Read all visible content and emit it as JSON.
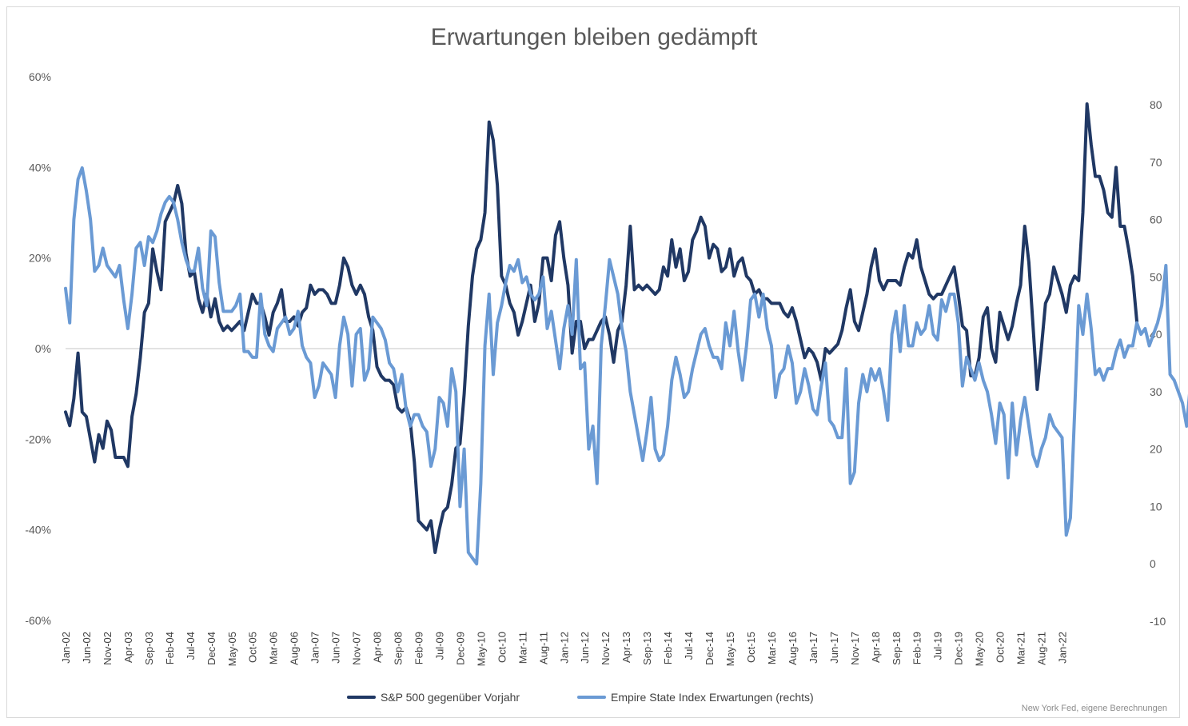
{
  "chart_data": {
    "type": "line",
    "title": "Erwartungen bleiben gedämpft",
    "source": "New York Fed, eigene Berechnungen",
    "x_labels": [
      "Jan-02",
      "Jun-02",
      "Nov-02",
      "Apr-03",
      "Sep-03",
      "Feb-04",
      "Jul-04",
      "Dec-04",
      "May-05",
      "Oct-05",
      "Mar-06",
      "Aug-06",
      "Jan-07",
      "Jun-07",
      "Nov-07",
      "Apr-08",
      "Sep-08",
      "Feb-09",
      "Jul-09",
      "Dec-09",
      "May-10",
      "Oct-10",
      "Mar-11",
      "Aug-11",
      "Jan-12",
      "Jun-12",
      "Nov-12",
      "Apr-13",
      "Sep-13",
      "Feb-14",
      "Jul-14",
      "Dec-14",
      "May-15",
      "Oct-15",
      "Mar-16",
      "Aug-16",
      "Jan-17",
      "Jun-17",
      "Nov-17",
      "Apr-18",
      "Sep-18",
      "Feb-19",
      "Jul-19",
      "Dec-19",
      "May-20",
      "Oct-20",
      "Mar-21",
      "Aug-21",
      "Jan-22"
    ],
    "y_left": {
      "ticks": [
        "60%",
        "40%",
        "20%",
        "0%",
        "-20%",
        "-40%",
        "-60%"
      ],
      "min": -0.6,
      "max": 0.6
    },
    "y_right": {
      "ticks": [
        "80",
        "70",
        "60",
        "50",
        "40",
        "30",
        "20",
        "10",
        "0",
        "-10"
      ],
      "min": -10,
      "max": 80
    },
    "grid": "zero-line only",
    "legend_position": "bottom",
    "series": [
      {
        "name": "S&P 500 gegenüber Vorjahr",
        "axis": "left",
        "color": "#203864",
        "values": [
          -0.14,
          -0.17,
          -0.11,
          -0.01,
          -0.14,
          -0.15,
          -0.2,
          -0.25,
          -0.19,
          -0.22,
          -0.16,
          -0.18,
          -0.24,
          -0.24,
          -0.24,
          -0.26,
          -0.15,
          -0.1,
          -0.02,
          0.08,
          0.1,
          0.22,
          0.17,
          0.13,
          0.28,
          0.3,
          0.32,
          0.36,
          0.32,
          0.21,
          0.16,
          0.17,
          0.11,
          0.08,
          0.12,
          0.07,
          0.11,
          0.06,
          0.04,
          0.05,
          0.04,
          0.05,
          0.06,
          0.04,
          0.08,
          0.12,
          0.1,
          0.1,
          0.07,
          0.03,
          0.08,
          0.1,
          0.13,
          0.06,
          0.06,
          0.07,
          0.05,
          0.08,
          0.09,
          0.14,
          0.12,
          0.13,
          0.13,
          0.12,
          0.1,
          0.1,
          0.14,
          0.2,
          0.18,
          0.14,
          0.12,
          0.14,
          0.12,
          0.07,
          0.04,
          -0.04,
          -0.06,
          -0.07,
          -0.07,
          -0.08,
          -0.13,
          -0.14,
          -0.13,
          -0.16,
          -0.25,
          -0.38,
          -0.39,
          -0.4,
          -0.38,
          -0.45,
          -0.4,
          -0.36,
          -0.35,
          -0.3,
          -0.22,
          -0.21,
          -0.1,
          0.05,
          0.16,
          0.22,
          0.24,
          0.3,
          0.5,
          0.46,
          0.36,
          0.16,
          0.14,
          0.1,
          0.08,
          0.03,
          0.06,
          0.1,
          0.14,
          0.06,
          0.1,
          0.2,
          0.2,
          0.15,
          0.25,
          0.28,
          0.2,
          0.14,
          -0.01,
          0.06,
          0.06,
          0.0,
          0.02,
          0.02,
          0.04,
          0.06,
          0.07,
          0.03,
          -0.03,
          0.04,
          0.06,
          0.14,
          0.27,
          0.13,
          0.14,
          0.13,
          0.14,
          0.13,
          0.12,
          0.13,
          0.18,
          0.16,
          0.24,
          0.18,
          0.22,
          0.15,
          0.17,
          0.24,
          0.26,
          0.29,
          0.27,
          0.2,
          0.23,
          0.22,
          0.17,
          0.18,
          0.22,
          0.16,
          0.19,
          0.2,
          0.16,
          0.15,
          0.12,
          0.13,
          0.11,
          0.11,
          0.1,
          0.1,
          0.1,
          0.08,
          0.07,
          0.09,
          0.06,
          0.02,
          -0.02,
          0.0,
          -0.01,
          -0.03,
          -0.07,
          0.0,
          -0.01,
          0.0,
          0.01,
          0.04,
          0.09,
          0.13,
          0.06,
          0.04,
          0.08,
          0.12,
          0.18,
          0.22,
          0.15,
          0.13,
          0.15,
          0.15,
          0.15,
          0.14,
          0.18,
          0.21,
          0.2,
          0.24,
          0.18,
          0.15,
          0.12,
          0.11,
          0.12,
          0.12,
          0.14,
          0.16,
          0.18,
          0.12,
          0.05,
          0.04,
          -0.06,
          -0.06,
          -0.02,
          0.07,
          0.09,
          0.0,
          -0.03,
          0.08,
          0.05,
          0.02,
          0.05,
          0.1,
          0.14,
          0.27,
          0.19,
          0.05,
          -0.09,
          0.0,
          0.1,
          0.12,
          0.18,
          0.15,
          0.12,
          0.08,
          0.14,
          0.16,
          0.15,
          0.3,
          0.54,
          0.45,
          0.38,
          0.38,
          0.35,
          0.3,
          0.29,
          0.4,
          0.27,
          0.27,
          0.22,
          0.16,
          0.06
        ]
      },
      {
        "name": "Empire State Index Erwartungen (rechts)",
        "axis": "right",
        "color": "#6a9ad4",
        "values": [
          48,
          42,
          60,
          67,
          69,
          65,
          60,
          51,
          52,
          55,
          52,
          51,
          50,
          52,
          46,
          41,
          47,
          55,
          56,
          52,
          57,
          56,
          58,
          61,
          63,
          64,
          63,
          60,
          56,
          53,
          51,
          51,
          55,
          48,
          45,
          58,
          57,
          49,
          44,
          44,
          44,
          45,
          47,
          37,
          37,
          36,
          36,
          47,
          40,
          38,
          37,
          41,
          42,
          43,
          40,
          41,
          44,
          38,
          36,
          35,
          29,
          31,
          35,
          34,
          33,
          29,
          38,
          43,
          40,
          31,
          40,
          41,
          32,
          34,
          43,
          42,
          41,
          39,
          35,
          34,
          30,
          33,
          27,
          24,
          26,
          26,
          24,
          23,
          17,
          20,
          29,
          28,
          24,
          34,
          30,
          10,
          20,
          2,
          1,
          0,
          14,
          38,
          47,
          33,
          42,
          45,
          49,
          52,
          51,
          53,
          49,
          50,
          47,
          46,
          47,
          50,
          41,
          44,
          39,
          34,
          41,
          45,
          40,
          53,
          34,
          35,
          20,
          24,
          14,
          38,
          45,
          53,
          50,
          47,
          41,
          37,
          30,
          26,
          22,
          18,
          23,
          29,
          20,
          18,
          19,
          24,
          32,
          36,
          33,
          29,
          30,
          34,
          37,
          40,
          41,
          38,
          36,
          36,
          34,
          42,
          38,
          44,
          37,
          32,
          38,
          46,
          47,
          43,
          47,
          41,
          38,
          29,
          33,
          34,
          38,
          35,
          28,
          30,
          34,
          31,
          27,
          26,
          31,
          35,
          25,
          24,
          22,
          22,
          34,
          14,
          16,
          28,
          33,
          30,
          34,
          32,
          34,
          30,
          25,
          40,
          44,
          37,
          45,
          38,
          38,
          42,
          40,
          41,
          45,
          40,
          39,
          46,
          44,
          47,
          47,
          42,
          31,
          36,
          34,
          32,
          35,
          32,
          30,
          26,
          21,
          28,
          26,
          15,
          28,
          19,
          25,
          29,
          24,
          19,
          17,
          20,
          22,
          26,
          24,
          23,
          22,
          5,
          8,
          26,
          45,
          40,
          47,
          41,
          33,
          34,
          32,
          34,
          34,
          37,
          39,
          36,
          38,
          38,
          42,
          40,
          41,
          38,
          40,
          42,
          45,
          52,
          33,
          32,
          30,
          28,
          24,
          32
        ]
      }
    ]
  }
}
